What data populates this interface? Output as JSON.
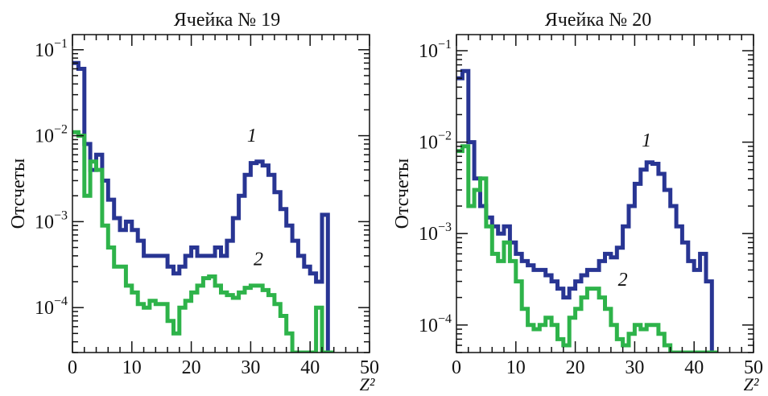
{
  "chart_data": [
    {
      "type": "line",
      "title": "Ячейка № 19",
      "xlabel": "Z²",
      "ylabel": "Отсчеты",
      "y_scale": "log",
      "xlim": [
        0,
        50
      ],
      "ylim": [
        3e-05,
        0.15
      ],
      "x_ticks": [
        "0",
        "10",
        "20",
        "30",
        "40",
        "50"
      ],
      "y_ticks": [
        {
          "value": 0.1,
          "mantissa": "10",
          "exponent": "−1"
        },
        {
          "value": 0.01,
          "mantissa": "10",
          "exponent": "−2"
        },
        {
          "value": 0.001,
          "mantissa": "10",
          "exponent": "−3"
        },
        {
          "value": 0.0001,
          "mantissa": "10",
          "exponent": "−4"
        }
      ],
      "annotations": [
        {
          "text": "1",
          "x": 30.2,
          "y": 0.0085
        },
        {
          "text": "2",
          "x": 31.3,
          "y": 0.00031
        }
      ],
      "series": [
        {
          "color": "#283593",
          "x": [
            0,
            1,
            2,
            3,
            4,
            5,
            6,
            7,
            8,
            9,
            10,
            11,
            12,
            13,
            14,
            15,
            16,
            17,
            18,
            19,
            20,
            21,
            22,
            23,
            24,
            25,
            26,
            27,
            28,
            29,
            30,
            31,
            32,
            33,
            34,
            35,
            36,
            37,
            38,
            39,
            40,
            41,
            42,
            43
          ],
          "values": [
            0.07,
            0.06,
            0.008,
            0.004,
            0.006,
            0.003,
            0.0018,
            0.0011,
            0.0008,
            0.001,
            0.0008,
            0.0006,
            0.0004,
            0.0004,
            0.0004,
            0.0004,
            0.0003,
            0.00025,
            0.0003,
            0.0004,
            0.0005,
            0.0004,
            0.0004,
            0.0004,
            0.0005,
            0.0004,
            0.0006,
            0.0011,
            0.002,
            0.0035,
            0.0048,
            0.005,
            0.0045,
            0.0035,
            0.0022,
            0.0014,
            0.0009,
            0.0006,
            0.0004,
            0.0003,
            0.00025,
            0.0002,
            0.0012,
            3e-05
          ]
        },
        {
          "color": "#2eb34a",
          "x": [
            0,
            1,
            2,
            3,
            4,
            5,
            6,
            7,
            8,
            9,
            10,
            11,
            12,
            13,
            14,
            15,
            16,
            17,
            18,
            19,
            20,
            21,
            22,
            23,
            24,
            25,
            26,
            27,
            28,
            29,
            30,
            31,
            32,
            33,
            34,
            35,
            36,
            37,
            38,
            39,
            40,
            41,
            42,
            43
          ],
          "values": [
            0.011,
            0.01,
            0.002,
            0.005,
            0.004,
            0.0009,
            0.0005,
            0.0003,
            0.0003,
            0.00018,
            0.00015,
            0.00011,
            0.0001,
            0.00012,
            0.00011,
            0.00011,
            7e-05,
            5e-05,
            0.0001,
            0.00012,
            0.00015,
            0.00018,
            0.00022,
            0.00023,
            0.00018,
            0.00015,
            0.00014,
            0.00013,
            0.00015,
            0.00017,
            0.00018,
            0.00018,
            0.00016,
            0.00014,
            0.00011,
            8e-05,
            5e-05,
            3e-05,
            3e-05,
            3e-05,
            3e-05,
            0.0001,
            3e-05,
            3e-05
          ]
        }
      ]
    },
    {
      "type": "line",
      "title": "Ячейка № 20",
      "xlabel": "Z²",
      "ylabel": "Отсчеты",
      "y_scale": "log",
      "xlim": [
        0,
        50
      ],
      "ylim": [
        5e-05,
        0.15
      ],
      "x_ticks": [
        "0",
        "10",
        "20",
        "30",
        "40",
        "50"
      ],
      "y_ticks": [
        {
          "value": 0.1,
          "mantissa": "10",
          "exponent": "−1"
        },
        {
          "value": 0.01,
          "mantissa": "10",
          "exponent": "−2"
        },
        {
          "value": 0.001,
          "mantissa": "10",
          "exponent": "−3"
        },
        {
          "value": 0.0001,
          "mantissa": "10",
          "exponent": "−4"
        }
      ],
      "annotations": [
        {
          "text": "1",
          "x": 32.0,
          "y": 0.009
        },
        {
          "text": "2",
          "x": 28.0,
          "y": 0.00027
        }
      ],
      "series": [
        {
          "color": "#283593",
          "x": [
            0,
            1,
            2,
            3,
            4,
            5,
            6,
            7,
            8,
            9,
            10,
            11,
            12,
            13,
            14,
            15,
            16,
            17,
            18,
            19,
            20,
            21,
            22,
            23,
            24,
            25,
            26,
            27,
            28,
            29,
            30,
            31,
            32,
            33,
            34,
            35,
            36,
            37,
            38,
            39,
            40,
            41,
            42,
            43
          ],
          "values": [
            0.05,
            0.06,
            0.01,
            0.004,
            0.002,
            0.0015,
            0.0012,
            0.001,
            0.0012,
            0.0008,
            0.0006,
            0.0005,
            0.00045,
            0.0004,
            0.0004,
            0.00035,
            0.0003,
            0.00025,
            0.0002,
            0.00025,
            0.0003,
            0.00035,
            0.0004,
            0.0004,
            0.0005,
            0.0006,
            0.00055,
            0.0007,
            0.0012,
            0.002,
            0.0035,
            0.005,
            0.006,
            0.0058,
            0.0045,
            0.003,
            0.002,
            0.0012,
            0.0008,
            0.0005,
            0.0004,
            0.0006,
            0.0003,
            5e-05
          ]
        },
        {
          "color": "#2eb34a",
          "x": [
            0,
            1,
            2,
            3,
            4,
            5,
            6,
            7,
            8,
            9,
            10,
            11,
            12,
            13,
            14,
            15,
            16,
            17,
            18,
            19,
            20,
            21,
            22,
            23,
            24,
            25,
            26,
            27,
            28,
            29,
            30,
            31,
            32,
            33,
            34,
            35,
            36,
            37,
            38,
            39,
            40,
            41,
            42,
            43
          ],
          "values": [
            0.008,
            0.009,
            0.002,
            0.003,
            0.004,
            0.0012,
            0.0006,
            0.0005,
            0.0008,
            0.0005,
            0.0003,
            0.00015,
            0.0001,
            9e-05,
            0.0001,
            0.00012,
            0.0001,
            7e-05,
            6e-05,
            0.00012,
            0.00015,
            0.0002,
            0.00025,
            0.00025,
            0.0002,
            0.00015,
            0.0001,
            7e-05,
            6e-05,
            8e-05,
            0.0001,
            9e-05,
            0.0001,
            0.0001,
            8e-05,
            6e-05,
            5e-05,
            5e-05,
            5e-05,
            5e-05,
            5e-05,
            5e-05,
            5e-05,
            5e-05
          ]
        }
      ]
    }
  ]
}
